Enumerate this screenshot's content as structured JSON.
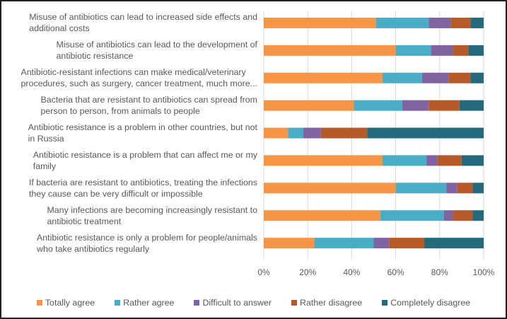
{
  "chart_data": {
    "type": "bar",
    "orientation": "horizontal",
    "stacked": "percent",
    "title": "",
    "xlabel": "",
    "ylabel": "",
    "xlim": [
      0,
      100
    ],
    "x_ticks": [
      "0%",
      "20%",
      "40%",
      "60%",
      "80%",
      "100%"
    ],
    "grid": true,
    "legend_position": "bottom",
    "categories": [
      "Misuse of antibiotics can lead to increased side effects and additional costs",
      "Misuse of antibiotics can lead to the development of antibiotic resistance",
      "Antibiotic-resistant infections can make medical/veterinary procedures, such as surgery, cancer treatment, much more...",
      "Bacteria that are resistant to antibiotics can spread from person to person, from animals to people",
      "Antibiotic resistance is a problem in other countries, but not in Russia",
      "Antibiotic resistance is a problem that can affect me or my family",
      "If bacteria are resistant to antibiotics, treating the infections they cause can be very difficult or impossible",
      "Many infections are becoming increasingly resistant to antibiotic treatment",
      "Antibiotic resistance is only a problem for people/animals who take antibiotics regularly"
    ],
    "category_lines": [
      [
        "Misuse of antibiotics can lead to increased side effects and",
        "additional costs"
      ],
      [
        "Misuse of antibiotics can lead to the development of",
        "antibiotic resistance"
      ],
      [
        "Antibiotic-resistant infections can make medical/veterinary",
        "procedures, such as surgery, cancer treatment, much more..."
      ],
      [
        "Bacteria that are resistant to antibiotics can spread from",
        "person to person, from animals to people"
      ],
      [
        "Antibiotic resistance is a problem in other countries, but not",
        "in Russia"
      ],
      [
        "Antibiotic resistance is a problem that can affect me or my",
        "family"
      ],
      [
        "If bacteria are resistant to antibiotics, treating the infections",
        "they cause can be very difficult or impossible"
      ],
      [
        "Many infections are becoming increasingly resistant to",
        "antibiotic treatment"
      ],
      [
        "Antibiotic resistance is only a problem for people/animals",
        "who take antibiotics regularly"
      ]
    ],
    "series": [
      {
        "name": "Totally agree",
        "color": "#F79646",
        "values": [
          51,
          60,
          54,
          41,
          11,
          54,
          60,
          53,
          23
        ]
      },
      {
        "name": "Rather agree",
        "color": "#4BACC6",
        "values": [
          24,
          16,
          18,
          22,
          7,
          20,
          23,
          29,
          27
        ]
      },
      {
        "name": "Difficult to answer",
        "color": "#8064A2",
        "values": [
          10,
          10,
          12,
          12,
          8,
          5,
          5,
          4,
          7
        ]
      },
      {
        "name": "Rather disagree",
        "color": "#B65A29",
        "values": [
          9,
          7,
          10,
          14,
          21,
          11,
          7,
          9,
          16
        ]
      },
      {
        "name": "Completely disagree",
        "color": "#256A7C",
        "values": [
          6,
          7,
          6,
          11,
          53,
          10,
          5,
          5,
          27
        ]
      }
    ]
  }
}
